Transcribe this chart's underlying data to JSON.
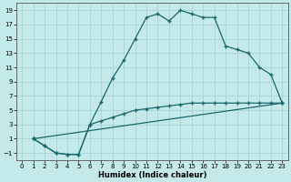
{
  "xlabel": "Humidex (Indice chaleur)",
  "bg_color": "#c5e8e8",
  "line_color": "#1a6b6b",
  "grid_color": "#a8d4d4",
  "xlim": [
    -0.5,
    23.5
  ],
  "ylim": [
    -2.0,
    20.0
  ],
  "xticks": [
    0,
    1,
    2,
    3,
    4,
    5,
    6,
    7,
    8,
    9,
    10,
    11,
    12,
    13,
    14,
    15,
    16,
    17,
    18,
    19,
    20,
    21,
    22,
    23
  ],
  "yticks": [
    -1,
    1,
    3,
    5,
    7,
    9,
    11,
    13,
    15,
    17,
    19
  ],
  "curve1_x": [
    1,
    2,
    3,
    4,
    5,
    6,
    7,
    8,
    9,
    10,
    11,
    12,
    13,
    14,
    15,
    16,
    17,
    18,
    19,
    20,
    21,
    22,
    23
  ],
  "curve1_y": [
    1,
    0,
    -1,
    -1.2,
    -1.2,
    3.0,
    6.2,
    9.5,
    12.0,
    15.0,
    18.0,
    18.5,
    17.5,
    19.0,
    18.5,
    18.0,
    18.0,
    14.0,
    13.5,
    13.0,
    11.0,
    10.0,
    6.0
  ],
  "curve2_x": [
    1,
    2,
    3,
    4,
    5,
    6,
    7,
    8,
    9,
    10,
    11,
    12,
    13,
    14,
    15,
    16,
    17,
    18,
    19,
    20,
    21,
    22,
    23
  ],
  "curve2_y": [
    1,
    0,
    -1,
    -1.2,
    -1.2,
    3.0,
    3.5,
    4.0,
    4.5,
    5.0,
    5.2,
    5.4,
    5.6,
    5.8,
    6.0,
    6.0,
    6.0,
    6.0,
    6.0,
    6.0,
    6.0,
    6.0,
    6.0
  ],
  "curve3_x": [
    1,
    23
  ],
  "curve3_y": [
    1,
    6.0
  ]
}
